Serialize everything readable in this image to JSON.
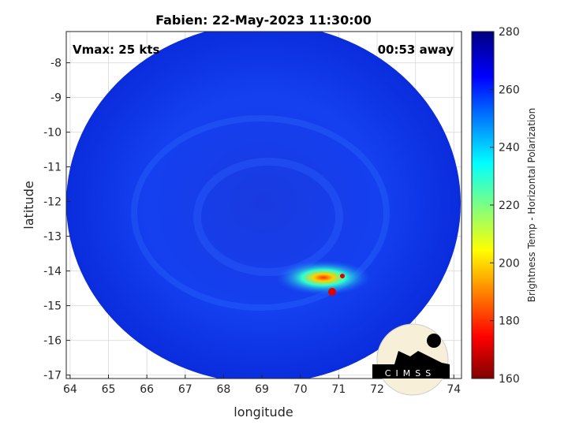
{
  "title": "Fabien: 22-May-2023 11:30:00",
  "vmax": "Vmax: 25 kts",
  "away": "00:53 away",
  "xlabel": "longitude",
  "ylabel": "latitude",
  "colorbar_label": "Brightness Temp - Horizontal Polarization",
  "logo_text": "CIMSS",
  "x_ticks": [
    "64",
    "65",
    "66",
    "67",
    "68",
    "69",
    "70",
    "71",
    "72",
    "73",
    "74"
  ],
  "y_ticks": [
    "-8",
    "-9",
    "-10",
    "-11",
    "-12",
    "-13",
    "-14",
    "-15",
    "-16",
    "-17"
  ],
  "cb_ticks": [
    "280",
    "260",
    "240",
    "220",
    "200",
    "180",
    "160"
  ],
  "chart_data": {
    "type": "heatmap",
    "xlim": [
      63.9,
      74.2
    ],
    "ylim": [
      -17.1,
      -7.1
    ],
    "clim": [
      160,
      280
    ],
    "colormap": "jet",
    "grid": true
  }
}
